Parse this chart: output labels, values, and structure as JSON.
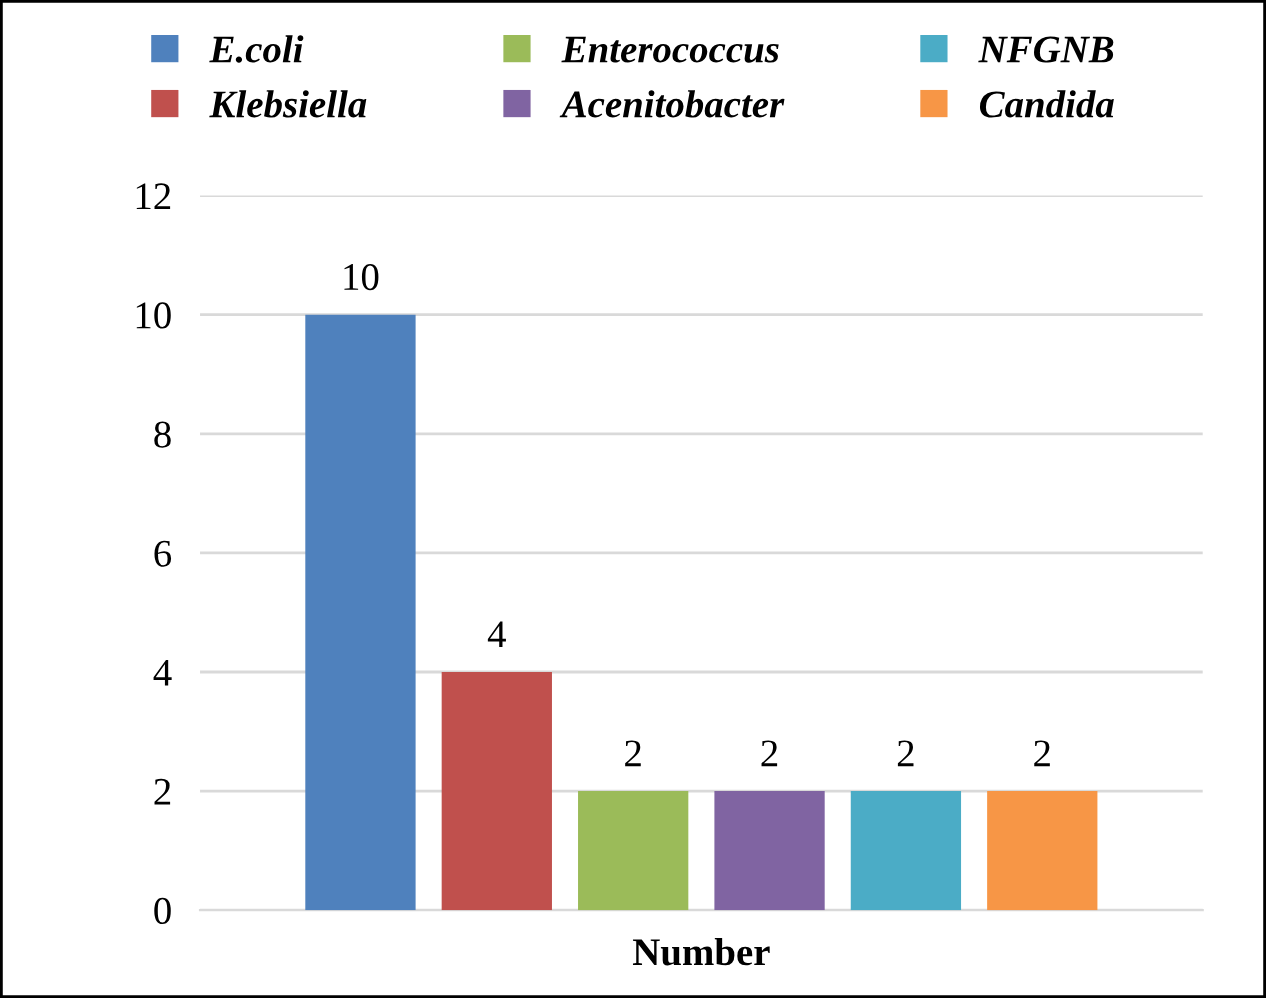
{
  "chart_data": {
    "type": "bar",
    "categories": [
      "Number"
    ],
    "series": [
      {
        "name": "E.coli",
        "color": "#4f81bd",
        "values": [
          10
        ]
      },
      {
        "name": "Klebsiella",
        "color": "#c0504d",
        "values": [
          4
        ]
      },
      {
        "name": "Enterococcus",
        "color": "#9bbb59",
        "values": [
          2
        ]
      },
      {
        "name": "Acenitobacter",
        "color": "#8064a2",
        "values": [
          2
        ]
      },
      {
        "name": "NFGNB",
        "color": "#4bacc6",
        "values": [
          2
        ]
      },
      {
        "name": "Candida",
        "color": "#f79646",
        "values": [
          2
        ]
      }
    ],
    "ylim": [
      0,
      12
    ],
    "yticks": [
      0,
      2,
      4,
      6,
      8,
      10,
      12
    ],
    "grid": "y",
    "legend": "top",
    "data_labels": true
  }
}
